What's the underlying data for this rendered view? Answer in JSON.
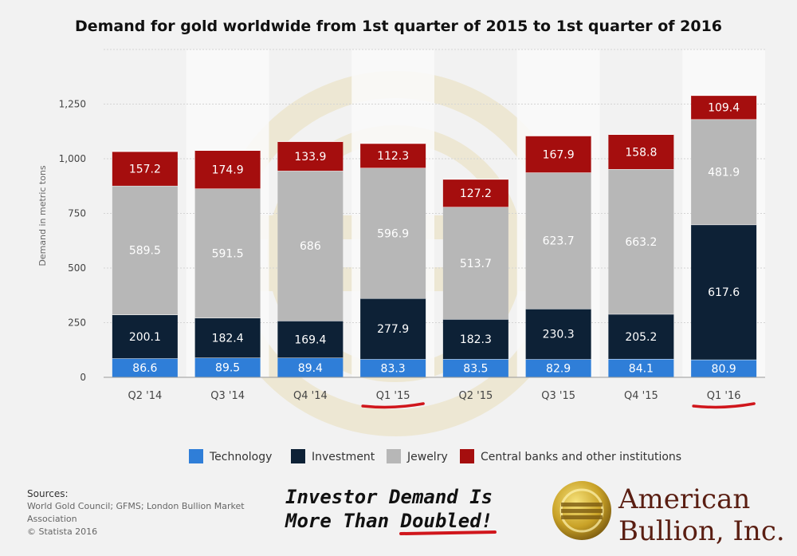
{
  "title": "Demand for gold worldwide from 1st quarter of 2015 to 1st quarter of 2016",
  "chart_data": {
    "type": "bar",
    "stacked": true,
    "title": "Demand for gold worldwide from 1st quarter of 2015 to 1st quarter of 2016",
    "xlabel": "",
    "ylabel": "Demand in metric tons",
    "ylim": [
      0,
      1500
    ],
    "yticks": [
      0,
      250,
      500,
      750,
      1000,
      1250
    ],
    "ytick_labels": [
      "0",
      "250",
      "500",
      "750",
      "1,000",
      "1,250"
    ],
    "categories": [
      "Q2 '14",
      "Q3 '14",
      "Q4 '14",
      "Q1 '15",
      "Q2 '15",
      "Q3 '15",
      "Q4 '15",
      "Q1 '16"
    ],
    "highlighted_categories": [
      "Q1 '15",
      "Q1 '16"
    ],
    "series": [
      {
        "name": "Technology",
        "color": "#2f7ed8",
        "label_color": "#ffffff",
        "values": [
          86.6,
          89.5,
          89.4,
          83.3,
          83.5,
          82.9,
          84.1,
          80.9
        ]
      },
      {
        "name": "Investment",
        "color": "#0d2136",
        "label_color": "#ffffff",
        "values": [
          200.1,
          182.4,
          169.4,
          277.9,
          182.3,
          230.3,
          205.2,
          617.6
        ]
      },
      {
        "name": "Jewelry",
        "color": "#b7b7b7",
        "label_color": "#ffffff",
        "values": [
          589.5,
          591.5,
          686,
          596.9,
          513.7,
          623.7,
          663.2,
          481.9
        ]
      },
      {
        "name": "Central banks and other institutions",
        "color": "#a50e0e",
        "label_color": "#ffffff",
        "values": [
          157.2,
          174.9,
          133.9,
          112.3,
          127.2,
          167.9,
          158.8,
          109.4
        ]
      }
    ],
    "data_labels": [
      [
        "86.6",
        "89.5",
        "89.4",
        "83.3",
        "83.5",
        "82.9",
        "84.1",
        "80.9"
      ],
      [
        "200.1",
        "182.4",
        "169.4",
        "277.9",
        "182.3",
        "230.3",
        "205.2",
        "617.6"
      ],
      [
        "589.5",
        "591.5",
        "686",
        "596.9",
        "513.7",
        "623.7",
        "663.2",
        "481.9"
      ],
      [
        "157.2",
        "174.9",
        "133.9",
        "112.3",
        "127.2",
        "167.9",
        "158.8",
        "109.4"
      ]
    ],
    "grid": true,
    "legend_position": "bottom"
  },
  "sources": {
    "title": "Sources:",
    "line1": "World Gold Council; GFMS; London Bullion Market Association",
    "line2": "© Statista 2016"
  },
  "promo": {
    "line1": "Investor Demand Is",
    "line2_prefix": "More Than ",
    "line2_word": "Doubled!"
  },
  "brand": {
    "line1": "American",
    "line2": "Bullion, Inc."
  },
  "colors": {
    "highlight_underline": "#d0161c",
    "brand": "#5a1e12",
    "gold": "#c9a227"
  }
}
